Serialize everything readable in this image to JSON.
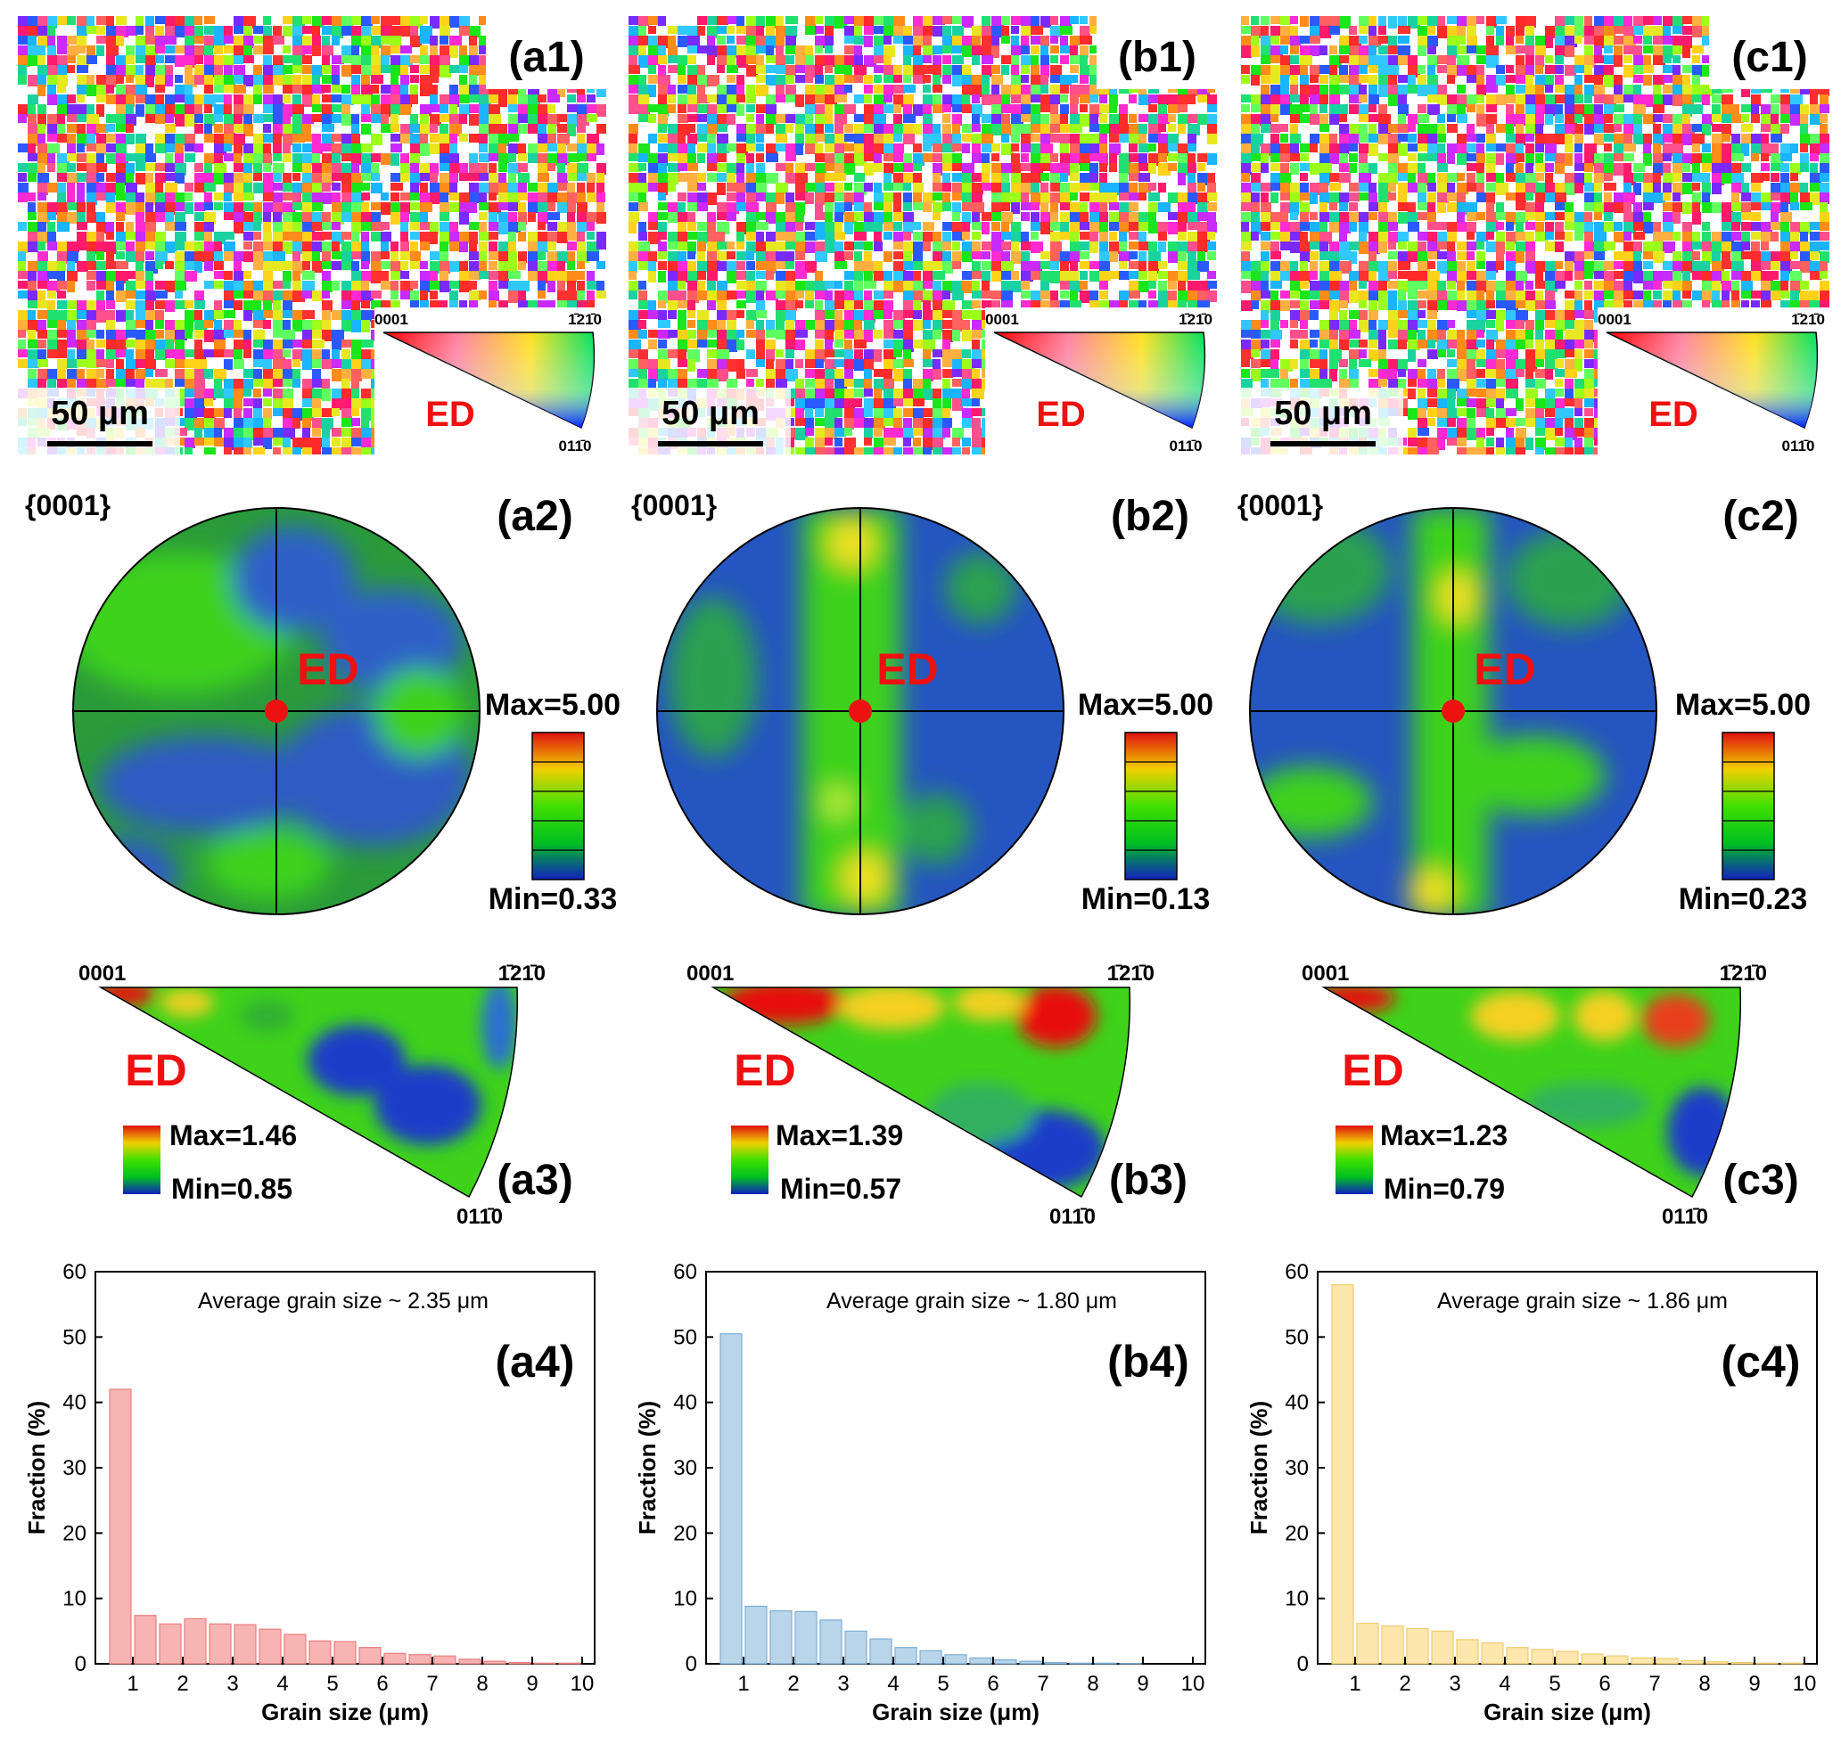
{
  "panel_labels": {
    "a1": "(a1)",
    "b1": "(b1)",
    "c1": "(c1)",
    "a2": "(a2)",
    "b2": "(b2)",
    "c2": "(c2)",
    "a3": "(a3)",
    "b3": "(b3)",
    "c3": "(c3)",
    "a4": "(a4)",
    "b4": "(b4)",
    "c4": "(c4)"
  },
  "common": {
    "scale_bar": "50 μm",
    "direction": "ED",
    "pole_figure_title": "{0001}",
    "ipf_corner_basal": "0001",
    "ipf_corner_prism1": "1̄21̄0",
    "ipf_corner_prism2": "011̄0"
  },
  "maps": [
    {
      "id": "a",
      "seed": 11
    },
    {
      "id": "b",
      "seed": 23
    },
    {
      "id": "c",
      "seed": 37
    }
  ],
  "pole_figures": [
    {
      "id": "a",
      "max": "Max=5.00",
      "min": "Min=0.33",
      "pattern": "diffuse"
    },
    {
      "id": "b",
      "max": "Max=5.00",
      "min": "Min=0.13",
      "pattern": "band"
    },
    {
      "id": "c",
      "max": "Max=5.00",
      "min": "Min=0.23",
      "pattern": "band-weak"
    }
  ],
  "inverse_pole_figures": [
    {
      "id": "a",
      "max": "Max=1.46",
      "min": "Min=0.85"
    },
    {
      "id": "b",
      "max": "Max=1.39",
      "min": "Min=0.57"
    },
    {
      "id": "c",
      "max": "Max=1.23",
      "min": "Min=0.79"
    }
  ],
  "colors": {
    "a": "#f8b3b3",
    "a_edge": "#e88080",
    "b": "#b9d5ea",
    "b_edge": "#7eaed3",
    "c": "#fde7ad",
    "c_edge": "#f0cc70",
    "ed_red": "#ee1111"
  },
  "chart_data": [
    {
      "type": "bar",
      "id": "a4",
      "title": "Average grain size ~ 2.35 μm",
      "xlabel": "Grain size (μm)",
      "ylabel": "Fraction (%)",
      "xlim": [
        0.25,
        10.25
      ],
      "ylim": [
        0,
        60
      ],
      "xticks": [
        1,
        2,
        3,
        4,
        5,
        6,
        7,
        8,
        9,
        10
      ],
      "yticks": [
        0,
        10,
        20,
        30,
        40,
        50,
        60
      ],
      "x": [
        0.75,
        1.25,
        1.75,
        2.25,
        2.75,
        3.25,
        3.75,
        4.25,
        4.75,
        5.25,
        5.75,
        6.25,
        6.75,
        7.25,
        7.75,
        8.25,
        8.75,
        9.25,
        9.75
      ],
      "values": [
        42.0,
        7.4,
        6.1,
        6.9,
        6.1,
        6.0,
        5.3,
        4.5,
        3.5,
        3.4,
        2.5,
        1.6,
        1.4,
        1.2,
        0.7,
        0.4,
        0.2,
        0.1,
        0.1
      ]
    },
    {
      "type": "bar",
      "id": "b4",
      "title": "Average grain size ~ 1.80 μm",
      "xlabel": "Grain size (μm)",
      "ylabel": "Fraction (%)",
      "xlim": [
        0.25,
        10.25
      ],
      "ylim": [
        0,
        60
      ],
      "xticks": [
        1,
        2,
        3,
        4,
        5,
        6,
        7,
        8,
        9,
        10
      ],
      "yticks": [
        0,
        10,
        20,
        30,
        40,
        50,
        60
      ],
      "x": [
        0.75,
        1.25,
        1.75,
        2.25,
        2.75,
        3.25,
        3.75,
        4.25,
        4.75,
        5.25,
        5.75,
        6.25,
        6.75,
        7.25,
        7.75,
        8.25,
        8.75,
        9.25,
        9.75
      ],
      "values": [
        50.5,
        8.8,
        8.1,
        8.0,
        6.7,
        5.0,
        3.8,
        2.5,
        2.0,
        1.4,
        0.9,
        0.6,
        0.4,
        0.2,
        0.1,
        0.1,
        0.05,
        0.0,
        0.0
      ]
    },
    {
      "type": "bar",
      "id": "c4",
      "title": "Average grain size ~ 1.86 μm",
      "xlabel": "Grain size (μm)",
      "ylabel": "Fraction (%)",
      "xlim": [
        0.25,
        10.25
      ],
      "ylim": [
        0,
        60
      ],
      "xticks": [
        1,
        2,
        3,
        4,
        5,
        6,
        7,
        8,
        9,
        10
      ],
      "yticks": [
        0,
        10,
        20,
        30,
        40,
        50,
        60
      ],
      "x": [
        0.75,
        1.25,
        1.75,
        2.25,
        2.75,
        3.25,
        3.75,
        4.25,
        4.75,
        5.25,
        5.75,
        6.25,
        6.75,
        7.25,
        7.75,
        8.25,
        8.75,
        9.25,
        9.75
      ],
      "values": [
        58.0,
        6.2,
        5.8,
        5.4,
        5.0,
        3.7,
        3.2,
        2.5,
        2.2,
        1.9,
        1.5,
        1.2,
        0.9,
        0.8,
        0.5,
        0.3,
        0.2,
        0.1,
        0.1
      ]
    }
  ]
}
